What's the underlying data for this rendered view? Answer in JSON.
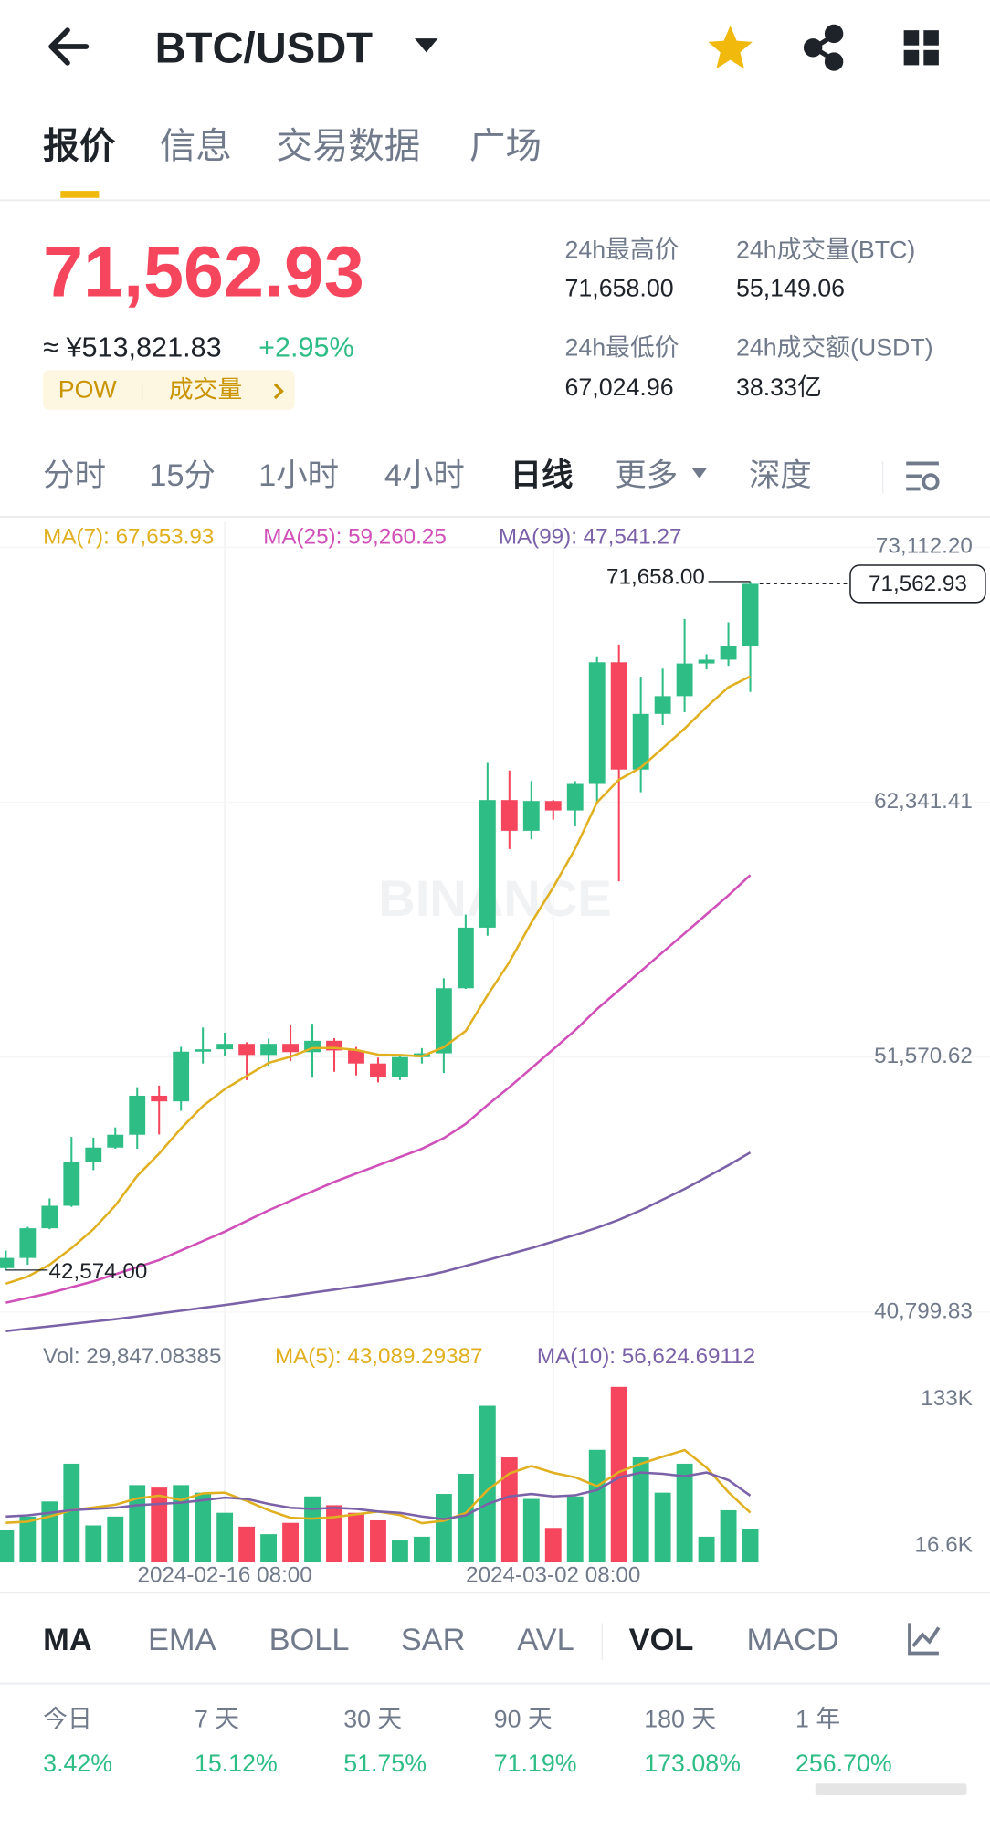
{
  "header": {
    "title": "BTC/USDT"
  },
  "tabs": [
    "报价",
    "信息",
    "交易数据",
    "广场"
  ],
  "price": "71,562.93",
  "cny": "≈ ¥513,821.83",
  "change": "+2.95%",
  "tags": [
    "POW",
    "成交量"
  ],
  "stats": [
    {
      "label": "24h最高价",
      "value": "71,658.00"
    },
    {
      "label": "24h成交量(BTC)",
      "value": "55,149.06"
    },
    {
      "label": "24h最低价",
      "value": "67,024.96"
    },
    {
      "label": "24h成交额(USDT)",
      "value": "38.33亿"
    }
  ],
  "intervals": [
    "分时",
    "15分",
    "1小时",
    "4小时",
    "日线",
    "更多",
    "深度"
  ],
  "chart_data": {
    "type": "candlestick",
    "watermark": "BINANCE",
    "categories": [
      null,
      null,
      null,
      null,
      null,
      null,
      null,
      null,
      null,
      null,
      "2024-02-16 08:00",
      null,
      null,
      null,
      null,
      null,
      null,
      null,
      null,
      null,
      null,
      null,
      null,
      null,
      null,
      "2024-03-02 08:00",
      null,
      null,
      null,
      null,
      null,
      null,
      null,
      null,
      null
    ],
    "open": [
      42658,
      43087,
      44340,
      45290,
      47130,
      47750,
      48290,
      49940,
      49700,
      51800,
      51900,
      52130,
      51660,
      52130,
      51780,
      52260,
      51850,
      51300,
      50740,
      51570,
      51730,
      54480,
      57040,
      62430,
      61130,
      62390,
      61990,
      63110,
      68250,
      63720,
      66070,
      66820,
      68200,
      68360,
      68950
    ],
    "high": [
      43400,
      44400,
      45600,
      48200,
      48170,
      48600,
      50300,
      50370,
      52000,
      52820,
      52600,
      52200,
      52350,
      52950,
      52980,
      52370,
      52000,
      51550,
      51700,
      51950,
      54900,
      57590,
      64000,
      63680,
      63230,
      62430,
      63230,
      68500,
      69000,
      67640,
      67980,
      70080,
      68590,
      69940,
      71658
    ],
    "low": [
      42574,
      42800,
      44300,
      45240,
      46800,
      47700,
      47700,
      48300,
      49300,
      51300,
      51600,
      50600,
      51200,
      51400,
      50700,
      50950,
      50800,
      50500,
      50600,
      51300,
      50900,
      54450,
      56700,
      60360,
      60770,
      61600,
      61320,
      62300,
      59000,
      62760,
      65600,
      66140,
      67950,
      68100,
      67000
    ],
    "close": [
      43087,
      44340,
      45290,
      47130,
      47750,
      48290,
      49940,
      49700,
      51800,
      51900,
      52130,
      51660,
      52130,
      51780,
      52260,
      51850,
      51300,
      50740,
      51570,
      51730,
      54480,
      57040,
      62430,
      61130,
      62390,
      61990,
      63110,
      68250,
      63720,
      66070,
      66820,
      68200,
      68360,
      68950,
      71562.93
    ],
    "up_color": "#2ebd85",
    "down_color": "#f6465d",
    "ylim": [
      40799.83,
      73112.2
    ],
    "yticks": [
      {
        "value": 73112.2,
        "label": "73,112.20"
      },
      {
        "value": 62341.41,
        "label": "62,341.41"
      },
      {
        "value": 51570.62,
        "label": "51,570.62"
      },
      {
        "value": 40799.83,
        "label": "40,799.83"
      }
    ],
    "grid": true,
    "high_label": "71,658.00",
    "low_label": "42,574.00",
    "last_label": "71,562.93",
    "series": [
      {
        "name": "MA(7): 67,653.93",
        "color": "#e0b020",
        "values": [
          42000,
          42300,
          42800,
          43500,
          44300,
          45300,
          46547,
          47491,
          48557,
          49501,
          50216,
          50774,
          51323,
          51586,
          51951,
          51959,
          51873,
          51674,
          51661,
          51604,
          51990,
          52673,
          54184,
          55589,
          57253,
          58741,
          60367,
          62334,
          63289,
          63809,
          64621,
          65451,
          66361,
          67196,
          67653.93
        ]
      },
      {
        "name": "MA(25): 59,260.25",
        "color": "#d04fb8",
        "values": [
          41200,
          41400,
          41600,
          41850,
          42100,
          42400,
          42700,
          43000,
          43400,
          43800,
          44200,
          44650,
          45100,
          45500,
          45900,
          46300,
          46650,
          47000,
          47350,
          47700,
          48150,
          48750,
          49550,
          50300,
          51100,
          51900,
          52700,
          53600,
          54400,
          55200,
          56000,
          56800,
          57600,
          58400,
          59260.25
        ]
      },
      {
        "name": "MA(99): 47,541.27",
        "color": "#7b62a8",
        "values": [
          40000,
          40100,
          40200,
          40300,
          40400,
          40500,
          40620,
          40740,
          40860,
          40980,
          41100,
          41230,
          41360,
          41490,
          41620,
          41750,
          41880,
          42010,
          42150,
          42300,
          42500,
          42750,
          43000,
          43250,
          43500,
          43780,
          44060,
          44360,
          44700,
          45100,
          45550,
          46000,
          46500,
          47000,
          47541.27
        ]
      }
    ],
    "volume": {
      "label": "Vol: 29,847.08385",
      "values": [
        29000,
        40000,
        52000,
        82000,
        33000,
        40000,
        65000,
        63000,
        65000,
        59000,
        43000,
        32000,
        26000,
        35000,
        56000,
        49000,
        43000,
        37000,
        21000,
        24000,
        58000,
        74000,
        128000,
        87000,
        54000,
        31000,
        56000,
        93000,
        143000,
        87000,
        59000,
        82000,
        24000,
        45000,
        29847.08385
      ],
      "ylim": [
        3600,
        146000
      ],
      "yticks": [
        {
          "value": 133000,
          "label": "133K"
        },
        {
          "value": 16600,
          "label": "16.6K"
        }
      ],
      "series": [
        {
          "name": "MA(5): 43,089.29387",
          "color": "#e0b020",
          "values": [
            35000,
            36000,
            40000,
            45000,
            47200,
            49400,
            54400,
            56600,
            53200,
            58400,
            59000,
            52400,
            45000,
            39000,
            38400,
            39600,
            41800,
            44000,
            41200,
            34800,
            36600,
            42800,
            61000,
            74200,
            80200,
            74800,
            71200,
            64200,
            75400,
            82000,
            87600,
            92800,
            79000,
            59400,
            43089.29387
          ]
        },
        {
          "name": "MA(10): 56,624.69112",
          "color": "#7b62a8",
          "values": [
            40000,
            41000,
            43000,
            45000,
            46000,
            47000,
            49000,
            50000,
            51000,
            53000,
            55000,
            54000,
            50000,
            47000,
            46000,
            47000,
            46000,
            44000,
            43000,
            40000,
            38000,
            41000,
            50000,
            56000,
            58000,
            56000,
            57000,
            61000,
            71000,
            75000,
            74000,
            72000,
            75000,
            69000,
            56624.69112
          ]
        }
      ]
    }
  },
  "indicators": [
    "MA",
    "EMA",
    "BOLL",
    "SAR",
    "AVL",
    "VOL",
    "MACD"
  ],
  "performance": [
    {
      "label": "今日",
      "value": "3.42%"
    },
    {
      "label": "7 天",
      "value": "15.12%"
    },
    {
      "label": "30 天",
      "value": "51.75%"
    },
    {
      "label": "90 天",
      "value": "71.19%"
    },
    {
      "label": "180 天",
      "value": "173.08%"
    },
    {
      "label": "1 年",
      "value": "256.70%"
    }
  ]
}
